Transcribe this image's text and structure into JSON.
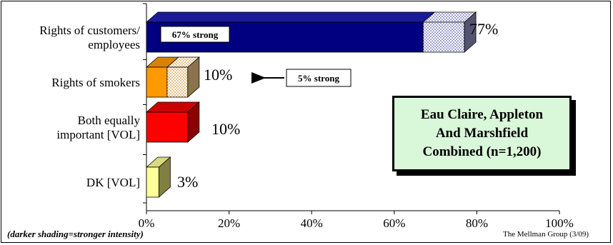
{
  "chart_data": {
    "type": "bar",
    "orientation": "horizontal",
    "categories": [
      [
        "Rights of customers/",
        "employees"
      ],
      [
        "Rights of smokers"
      ],
      [
        "Both equally",
        "important [VOL]"
      ],
      [
        "DK [VOL]"
      ]
    ],
    "totals": [
      77,
      10,
      10,
      3
    ],
    "total_labels": [
      "77%",
      "10%",
      "10%",
      "3%"
    ],
    "strong_values": [
      67,
      5,
      null,
      null
    ],
    "colors": {
      "customers_strong": "#000080",
      "customers_weak_pattern": "#9999cc",
      "smokers_strong": "#ff9900",
      "smokers_weak_pattern": "#e8c080",
      "both": "#ff0000",
      "dk": "#ffff99",
      "box_bg": "#d9f7d9"
    },
    "x_ticks": [
      "0%",
      "20%",
      "40%",
      "60%",
      "80%",
      "100%"
    ],
    "xlim": [
      0,
      100
    ],
    "grid": false,
    "annotations": {
      "customers_strong": "67% strong",
      "smokers_strong": "5% strong"
    }
  },
  "info_box": {
    "lines": [
      "Eau Claire, Appleton",
      "And Marshfield",
      "Combined (n=1,200)"
    ]
  },
  "footnote": "(darker shading=stronger intensity)",
  "source": "The Mellman Group (3/09)"
}
